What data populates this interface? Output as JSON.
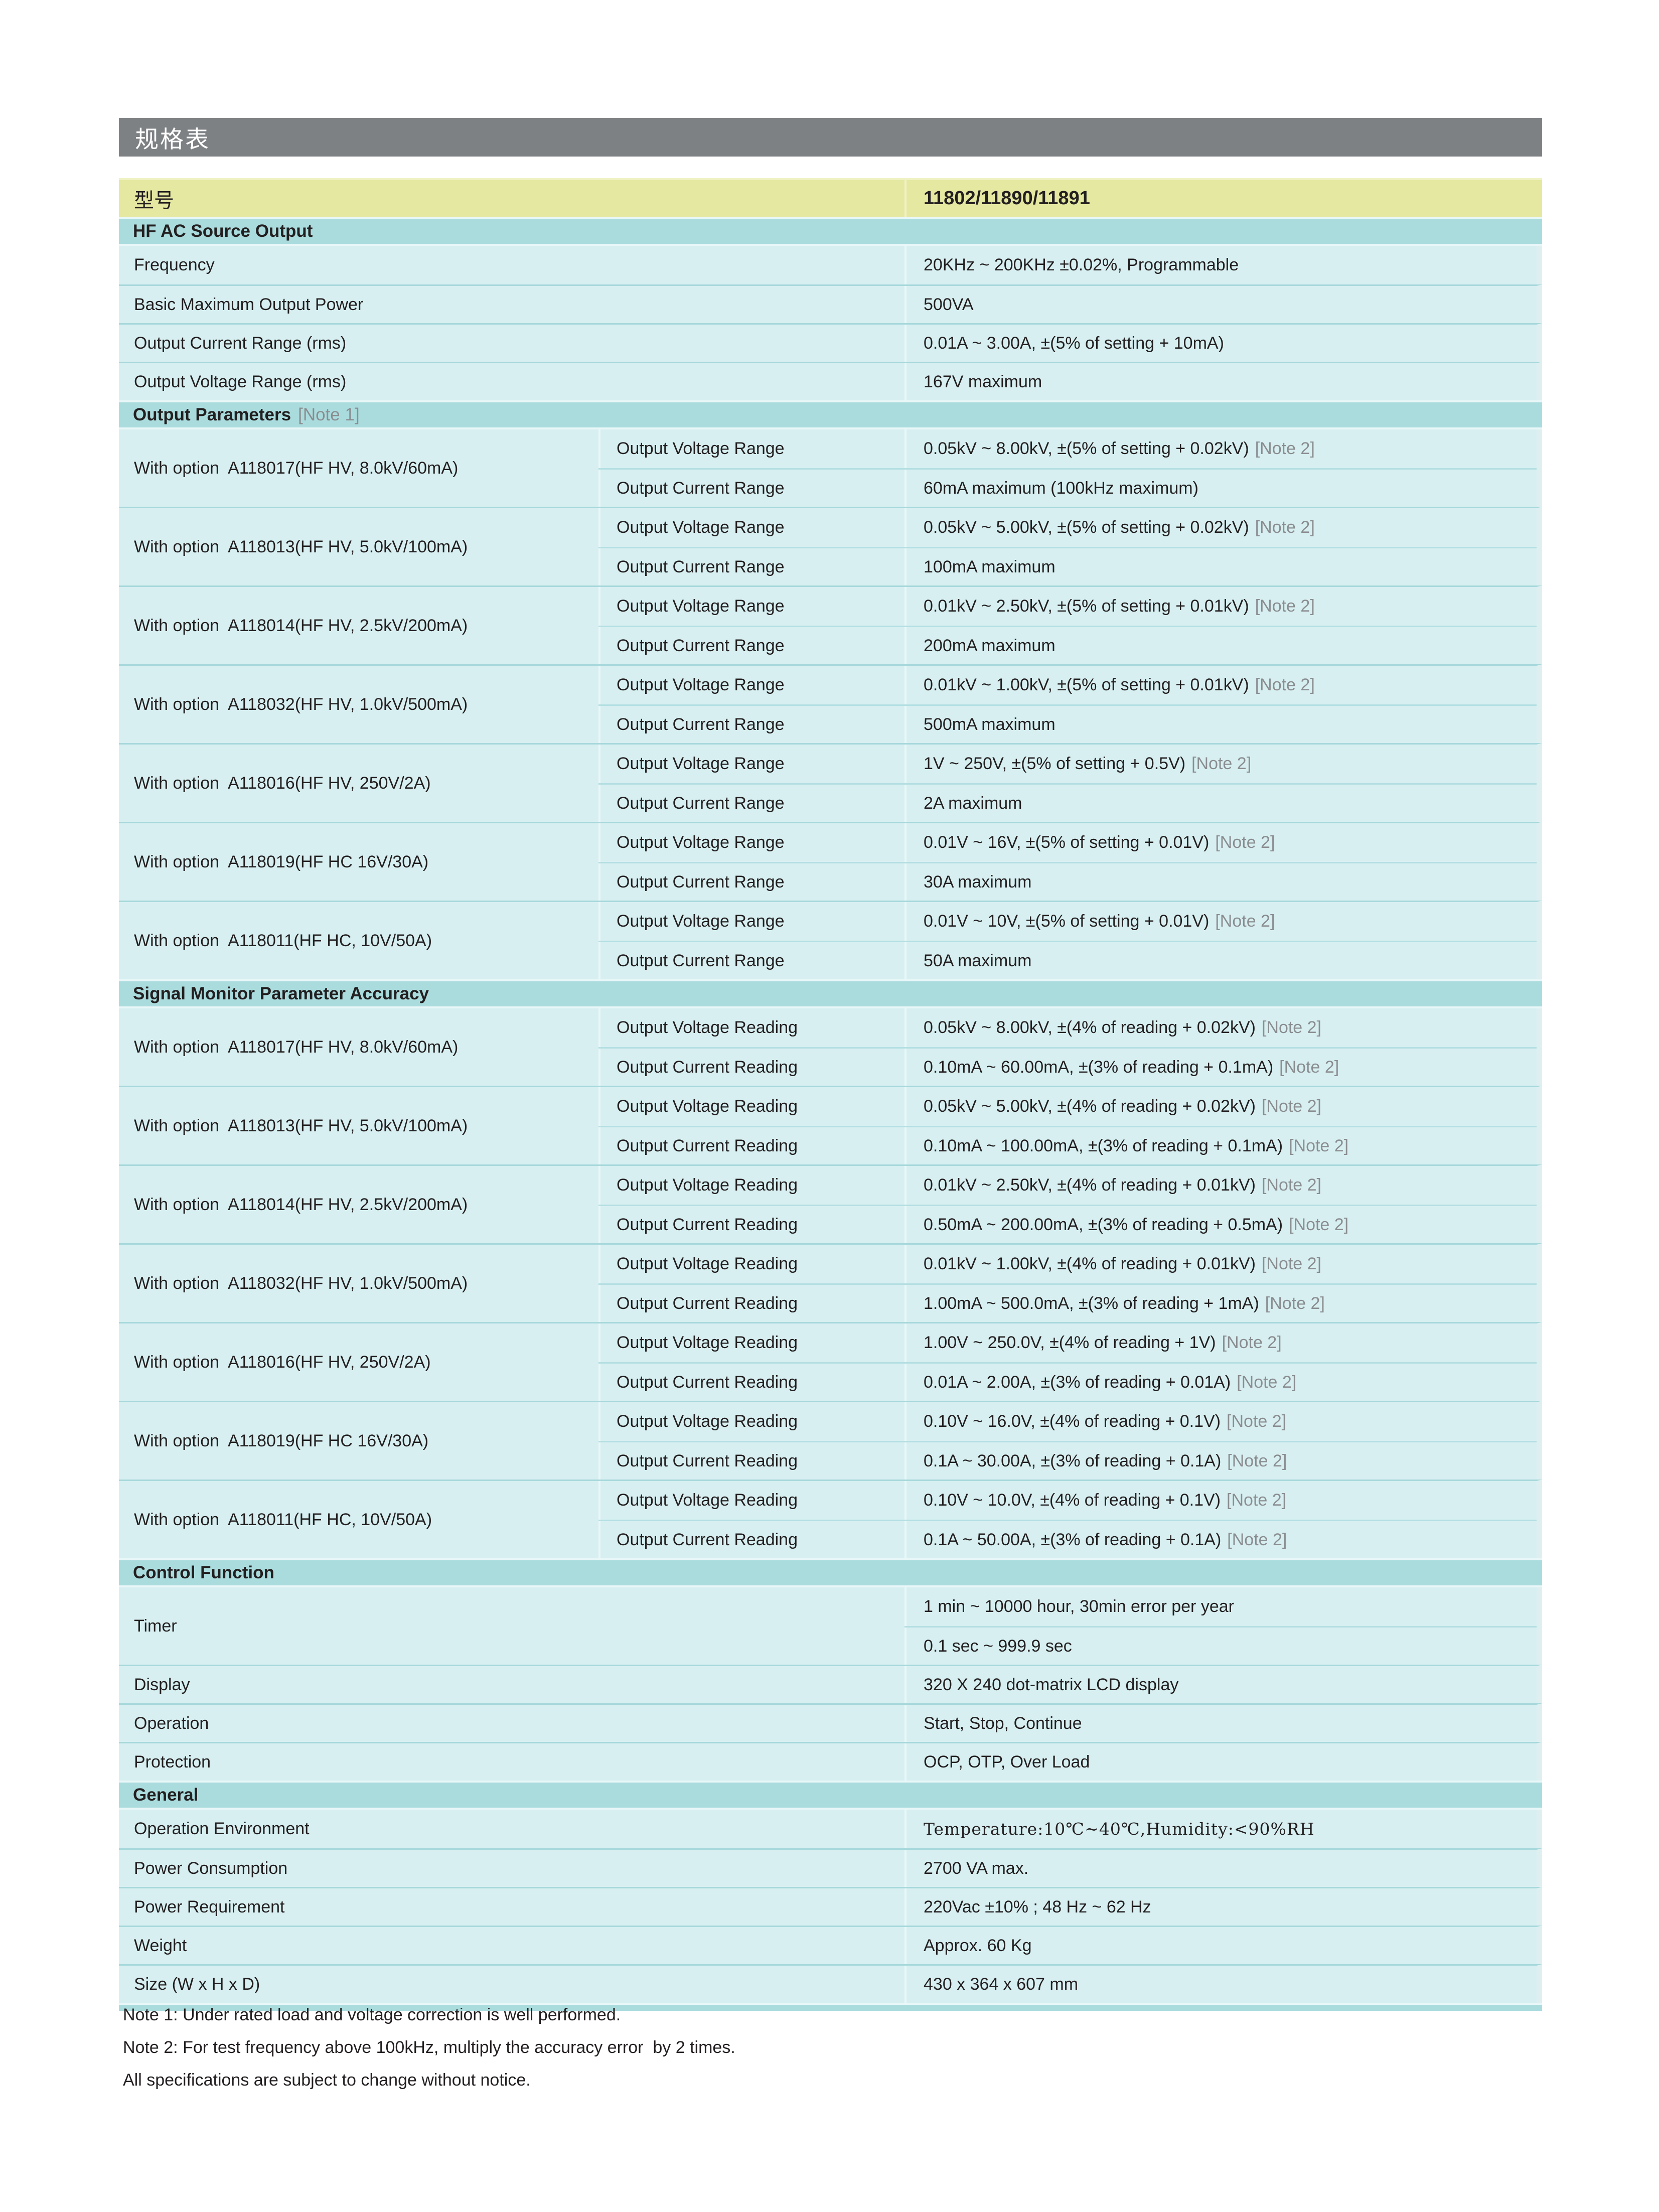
{
  "title_bar": {
    "text": "规格表"
  },
  "model_row": {
    "label": "型号",
    "value": "11802/11890/11891"
  },
  "sections": {
    "hf_ac": {
      "header": "HF AC Source Output",
      "rows": [
        {
          "label": "Frequency",
          "value": "20KHz ~ 200KHz ±0.02%, Programmable"
        },
        {
          "label": "Basic Maximum Output Power",
          "value": "500VA"
        },
        {
          "label": "Output Current Range (rms)",
          "value": "0.01A ~ 3.00A, ±(5% of setting + 10mA)"
        },
        {
          "label": "Output Voltage Range (rms)",
          "value": "167V maximum"
        }
      ]
    },
    "output_parameters": {
      "header": "Output Parameters",
      "header_note": "[Note 1]",
      "sub_voltage": "Output Voltage Range",
      "sub_current": "Output Current Range",
      "groups": [
        {
          "label": "With option  A118017(HF HV, 8.0kV/60mA)",
          "voltage": "0.05kV ~ 8.00kV, ±(5% of setting + 0.02kV)",
          "voltage_note": "[Note 2]",
          "current": "60mA maximum (100kHz maximum)"
        },
        {
          "label": "With option  A118013(HF HV, 5.0kV/100mA)",
          "voltage": "0.05kV ~ 5.00kV, ±(5% of setting + 0.02kV)",
          "voltage_note": "[Note 2]",
          "current": "100mA maximum"
        },
        {
          "label": "With option  A118014(HF HV, 2.5kV/200mA)",
          "voltage": "0.01kV ~ 2.50kV, ±(5% of setting + 0.01kV)",
          "voltage_note": "[Note 2]",
          "current": "200mA maximum"
        },
        {
          "label": "With option  A118032(HF HV, 1.0kV/500mA)",
          "voltage": "0.01kV ~ 1.00kV, ±(5% of setting + 0.01kV)",
          "voltage_note": "[Note 2]",
          "current": "500mA maximum"
        },
        {
          "label": "With option  A118016(HF HV, 250V/2A)",
          "voltage": "1V ~ 250V, ±(5% of setting + 0.5V)",
          "voltage_note": "[Note 2]",
          "current": "2A maximum"
        },
        {
          "label": "With option  A118019(HF HC 16V/30A)",
          "voltage": "0.01V ~ 16V, ±(5% of setting + 0.01V)",
          "voltage_note": "[Note 2]",
          "current": "30A maximum"
        },
        {
          "label": "With option  A118011(HF HC, 10V/50A)",
          "voltage": "0.01V ~ 10V, ±(5% of setting + 0.01V)",
          "voltage_note": "[Note 2]",
          "current": "50A maximum"
        }
      ]
    },
    "signal_monitor": {
      "header": "Signal Monitor Parameter Accuracy",
      "sub_voltage": "Output Voltage Reading",
      "sub_current": "Output Current Reading",
      "groups": [
        {
          "label": "With option  A118017(HF HV, 8.0kV/60mA)",
          "voltage": "0.05kV ~ 8.00kV, ±(4% of reading + 0.02kV)",
          "voltage_note": "[Note 2]",
          "current": "0.10mA ~ 60.00mA, ±(3% of reading + 0.1mA)",
          "current_note": "[Note 2]"
        },
        {
          "label": "With option  A118013(HF HV, 5.0kV/100mA)",
          "voltage": "0.05kV ~ 5.00kV, ±(4% of reading + 0.02kV)",
          "voltage_note": "[Note 2]",
          "current": "0.10mA ~ 100.00mA, ±(3% of reading + 0.1mA)",
          "current_note": "[Note 2]"
        },
        {
          "label": "With option  A118014(HF HV, 2.5kV/200mA)",
          "voltage": "0.01kV ~ 2.50kV, ±(4% of reading + 0.01kV)",
          "voltage_note": "[Note 2]",
          "current": "0.50mA ~ 200.00mA, ±(3% of reading + 0.5mA)",
          "current_note": "[Note 2]"
        },
        {
          "label": "With option  A118032(HF HV, 1.0kV/500mA)",
          "voltage": "0.01kV ~ 1.00kV, ±(4% of reading + 0.01kV)",
          "voltage_note": "[Note 2]",
          "current": "1.00mA ~ 500.0mA, ±(3% of reading + 1mA)",
          "current_note": "[Note 2]"
        },
        {
          "label": "With option  A118016(HF HV, 250V/2A)",
          "voltage": "1.00V ~ 250.0V, ±(4% of reading + 1V)",
          "voltage_note": "[Note 2]",
          "current": "0.01A ~ 2.00A, ±(3% of reading + 0.01A)",
          "current_note": "[Note 2]"
        },
        {
          "label": "With option  A118019(HF HC 16V/30A)",
          "voltage": "0.10V ~ 16.0V, ±(4% of reading + 0.1V)",
          "voltage_note": "[Note 2]",
          "current": "0.1A ~ 30.00A, ±(3% of reading + 0.1A)",
          "current_note": "[Note 2]"
        },
        {
          "label": "With option  A118011(HF HC, 10V/50A)",
          "voltage": "0.10V ~ 10.0V, ±(4% of reading + 0.1V)",
          "voltage_note": "[Note 2]",
          "current": "0.1A ~ 50.00A, ±(3% of reading + 0.1A)",
          "current_note": "[Note 2]"
        }
      ]
    },
    "control_function": {
      "header": "Control Function",
      "timer": {
        "label": "Timer",
        "values": [
          {
            "text": "1 min ~ 10000 hour, 30min error per year"
          },
          {
            "text": "0.1 sec ~ 999.9 sec"
          }
        ]
      },
      "rows": [
        {
          "label": "Display",
          "value": "320 X 240 dot-matrix LCD display"
        },
        {
          "label": "Operation",
          "value": "Start, Stop, Continue"
        },
        {
          "label": "Protection",
          "value": "OCP, OTP, Over Load"
        }
      ]
    },
    "general": {
      "header": "General",
      "rows": [
        {
          "label": "Operation Environment",
          "value": "Temperature:10℃~40℃,Humidity:<90%RH"
        },
        {
          "label": "Power Consumption",
          "value": "2700 VA max."
        },
        {
          "label": "Power Requirement",
          "value": "220Vac ±10% ; 48 Hz ~ 62 Hz"
        },
        {
          "label": "Weight",
          "value": "Approx. 60 Kg"
        },
        {
          "label": "Size (W x H x D)",
          "value": "430 x 364 x 607 mm"
        }
      ]
    }
  },
  "notes": {
    "note1": "Note 1: Under rated load and voltage correction is well performed.",
    "note2": "Note 2: For test frequency above 100kHz, multiply the accuracy error  by 2 times.",
    "disclaimer": "All specifications are subject to change without notice."
  },
  "colors": {
    "title_bar_gray": "#7e8184",
    "model_row_yellow": "#e5e8a1",
    "section_header_teal": "#aadcde",
    "row_background": "#d7eff1",
    "row_divider": "#a6d8db",
    "text": "#231f20",
    "note_gray": "#8a8d90"
  }
}
